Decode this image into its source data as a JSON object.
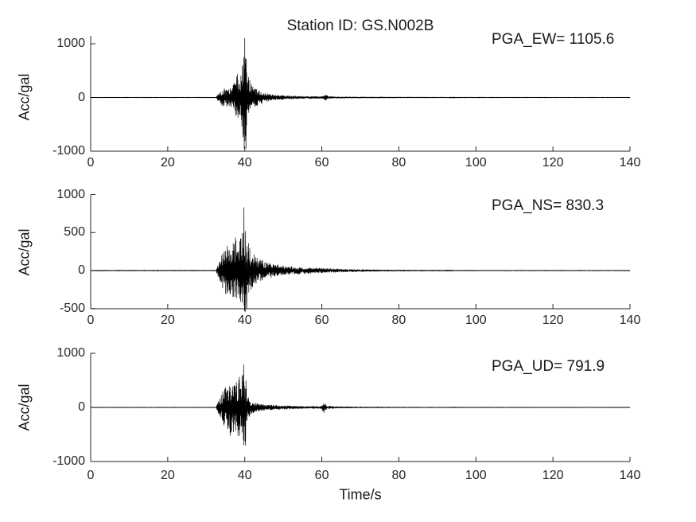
{
  "figure": {
    "background": "#ffffff",
    "trace_color": "#000000",
    "axis_color": "#262626",
    "text_color": "#1a1a1a"
  },
  "chart_data": {
    "type": "line",
    "subtype": "seismogram-3-component-acceleration",
    "title": "Station ID: GS.N002B",
    "station_id": "GS.N002B",
    "xlabel": "Time/s",
    "x_range": [
      0,
      140
    ],
    "x_ticks": [
      0,
      20,
      40,
      60,
      80,
      100,
      120,
      140
    ],
    "grid": false,
    "legend": false,
    "subplots": [
      {
        "component": "EW",
        "annotation": "PGA_EW= 1105.6",
        "pga": 1105.6,
        "ylabel": "Acc/gal",
        "y_ticks": [
          -1000,
          0,
          1000
        ],
        "y_range": [
          -1000,
          1150
        ],
        "event_start_s": 33,
        "peak_time_s": 40.0,
        "forced_points": [
          [
            40.0,
            1105.6
          ],
          [
            40.3,
            -950
          ],
          [
            39.45,
            600
          ],
          [
            38.1,
            430
          ]
        ],
        "envelope_t_amp": [
          [
            0,
            5
          ],
          [
            32.5,
            5
          ],
          [
            33,
            60
          ],
          [
            34,
            150
          ],
          [
            35,
            180
          ],
          [
            36,
            160
          ],
          [
            37,
            230
          ],
          [
            38,
            420
          ],
          [
            38.8,
            340
          ],
          [
            39.3,
            620
          ],
          [
            39.8,
            1000
          ],
          [
            40.3,
            900
          ],
          [
            40.8,
            420
          ],
          [
            41.5,
            300
          ],
          [
            42.5,
            200
          ],
          [
            44,
            120
          ],
          [
            46,
            70
          ],
          [
            48,
            45
          ],
          [
            52,
            30
          ],
          [
            56,
            22
          ],
          [
            60,
            16
          ],
          [
            61,
            55
          ],
          [
            61.8,
            18
          ],
          [
            64,
            13
          ],
          [
            70,
            10
          ],
          [
            80,
            7
          ],
          [
            93,
            6
          ],
          [
            94,
            11
          ],
          [
            95,
            6
          ],
          [
            110,
            5
          ],
          [
            140,
            4
          ]
        ]
      },
      {
        "component": "NS",
        "annotation": "PGA_NS= 830.3",
        "pga": 830.3,
        "ylabel": "Acc/gal",
        "y_ticks": [
          -500,
          0,
          500,
          1000
        ],
        "y_range": [
          -500,
          1000
        ],
        "event_start_s": 33,
        "peak_time_s": 39.8,
        "forced_points": [
          [
            39.8,
            830.3
          ],
          [
            40.1,
            -545
          ],
          [
            40.5,
            -500
          ],
          [
            37.6,
            430
          ]
        ],
        "envelope_t_amp": [
          [
            0,
            5
          ],
          [
            32.5,
            5
          ],
          [
            33,
            80
          ],
          [
            34,
            210
          ],
          [
            34.5,
            300
          ],
          [
            35.5,
            350
          ],
          [
            36.5,
            300
          ],
          [
            37.5,
            420
          ],
          [
            38.5,
            380
          ],
          [
            39.2,
            480
          ],
          [
            39.8,
            700
          ],
          [
            40.2,
            520
          ],
          [
            40.8,
            400
          ],
          [
            41.5,
            260
          ],
          [
            43,
            180
          ],
          [
            45,
            120
          ],
          [
            47,
            90
          ],
          [
            50,
            65
          ],
          [
            54,
            45
          ],
          [
            58,
            35
          ],
          [
            62,
            28
          ],
          [
            66,
            18
          ],
          [
            72,
            12
          ],
          [
            80,
            8
          ],
          [
            90,
            6
          ],
          [
            93,
            9
          ],
          [
            95,
            5
          ],
          [
            110,
            4
          ],
          [
            140,
            4
          ]
        ]
      },
      {
        "component": "UD",
        "annotation": "PGA_UD= 791.9",
        "pga": 791.9,
        "ylabel": "Acc/gal",
        "y_ticks": [
          -1000,
          0,
          1000
        ],
        "y_range": [
          -1000,
          1000
        ],
        "event_start_s": 33,
        "peak_time_s": 39.7,
        "forced_points": [
          [
            39.7,
            791.9
          ],
          [
            40.2,
            -700
          ],
          [
            38.6,
            560
          ],
          [
            36.2,
            -520
          ]
        ],
        "envelope_t_amp": [
          [
            0,
            4
          ],
          [
            32.5,
            4
          ],
          [
            33,
            100
          ],
          [
            34,
            260
          ],
          [
            35,
            430
          ],
          [
            36,
            500
          ],
          [
            37,
            470
          ],
          [
            38,
            520
          ],
          [
            39,
            560
          ],
          [
            39.7,
            700
          ],
          [
            40.2,
            650
          ],
          [
            40.7,
            250
          ],
          [
            41.5,
            120
          ],
          [
            43,
            80
          ],
          [
            45,
            55
          ],
          [
            48,
            40
          ],
          [
            52,
            28
          ],
          [
            56,
            20
          ],
          [
            59.8,
            22
          ],
          [
            60.5,
            110
          ],
          [
            61.3,
            28
          ],
          [
            64,
            14
          ],
          [
            70,
            10
          ],
          [
            80,
            6
          ],
          [
            93,
            5
          ],
          [
            94,
            8
          ],
          [
            96,
            5
          ],
          [
            120,
            4
          ],
          [
            140,
            4
          ]
        ]
      }
    ]
  }
}
